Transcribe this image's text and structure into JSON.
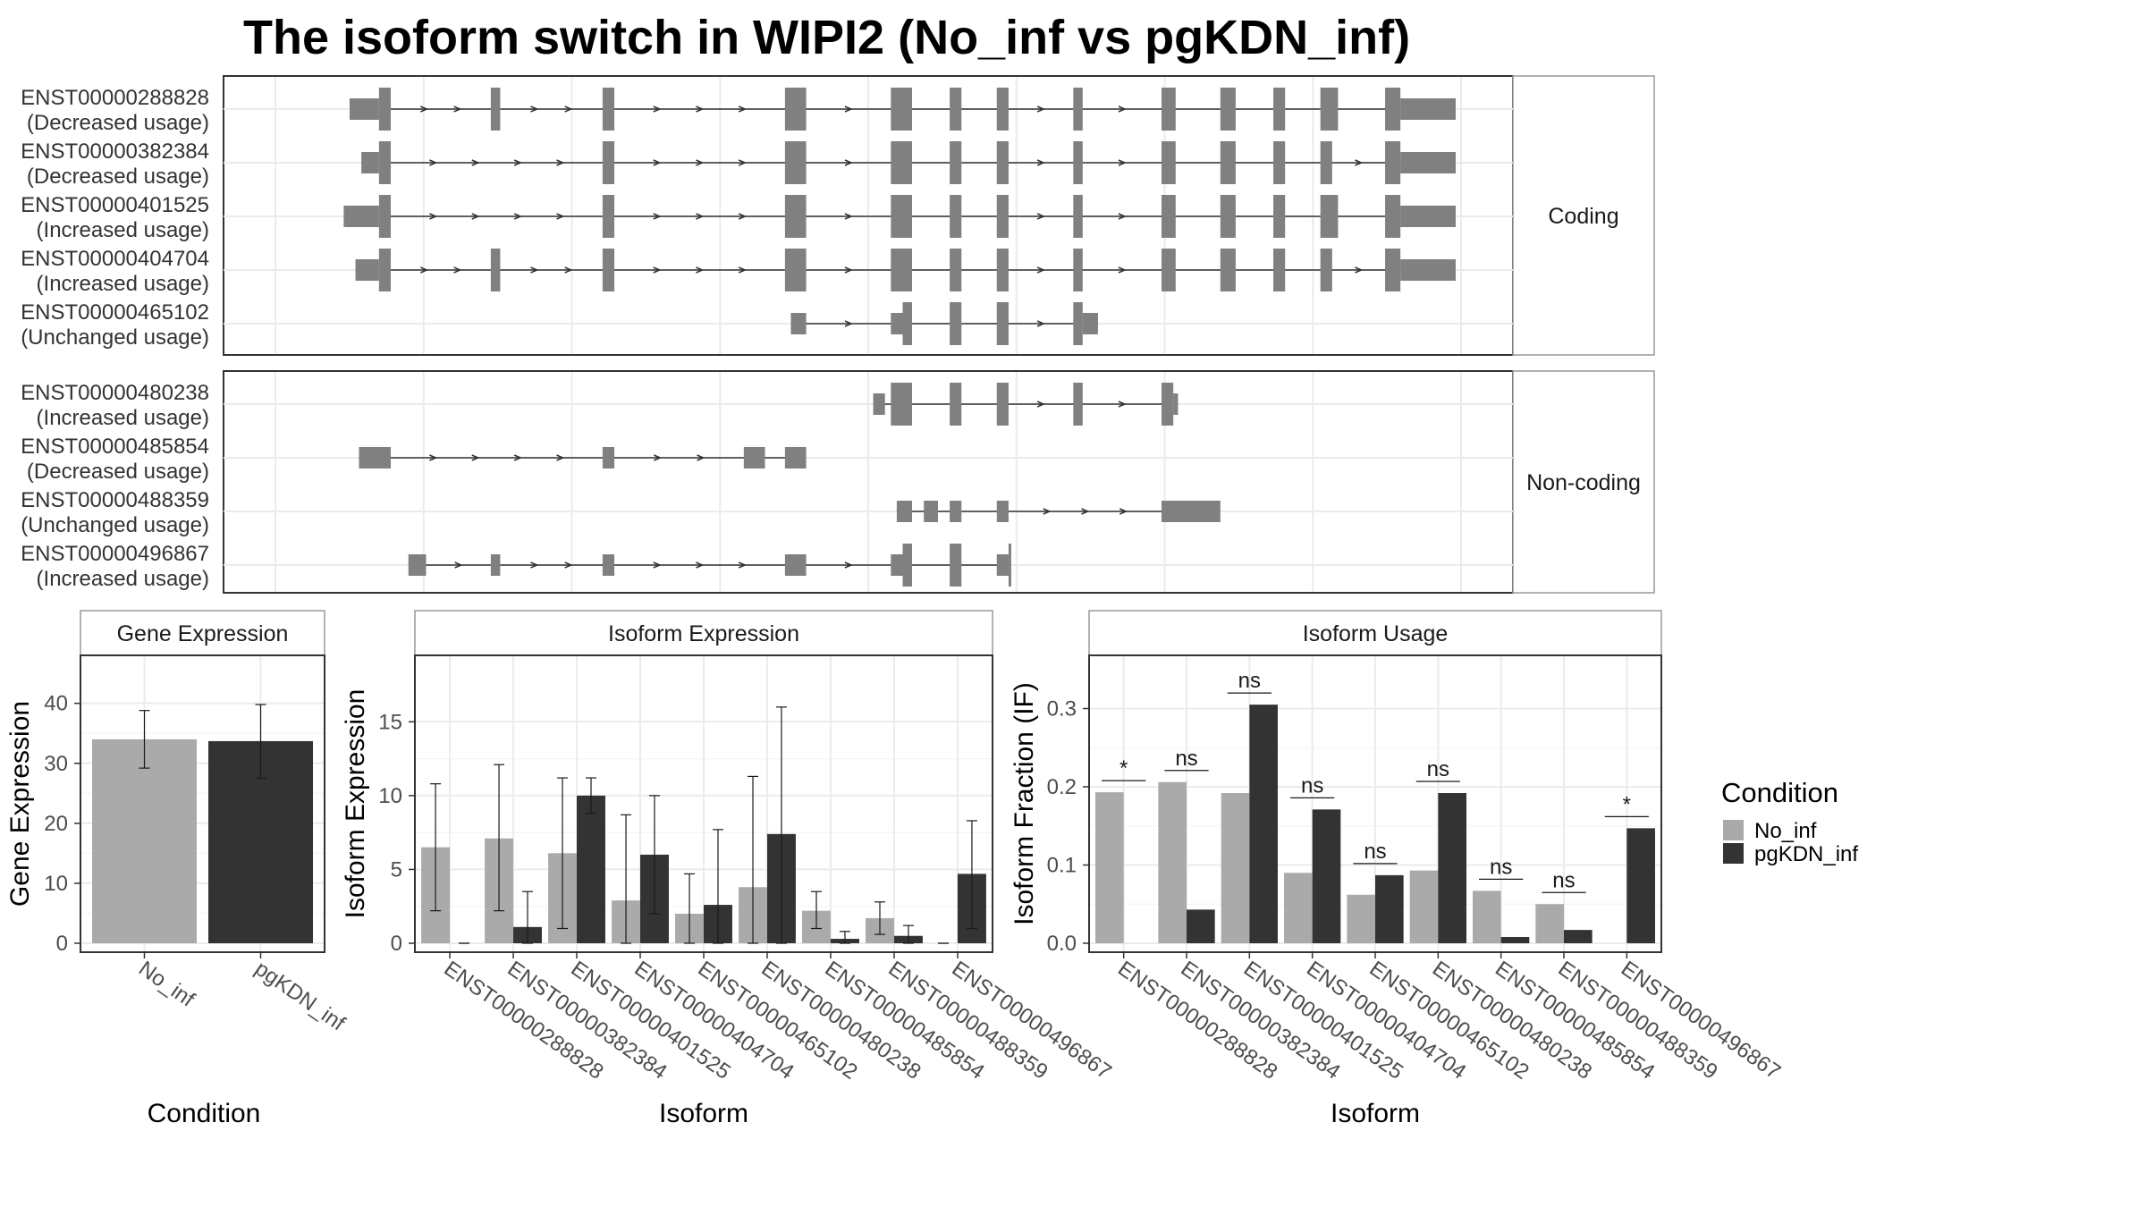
{
  "title": "The isoform switch in WIPI2 (No_inf vs pgKDN_inf)",
  "colors": {
    "No_inf": "#aaaaaa",
    "pgKDN_inf": "#333333",
    "exon": "#808080",
    "grid": "#ebebeb",
    "border": "#333333",
    "strip_border": "#999999"
  },
  "structure": {
    "groups": [
      {
        "name": "Coding",
        "isoforms": [
          {
            "id": "ENST00000288828",
            "usage": "(Decreased usage)",
            "exons": [
              [
                0.06,
                0.085,
                0.5
              ],
              [
                0.085,
                0.095,
                1
              ],
              [
                0.18,
                0.188,
                1
              ],
              [
                0.275,
                0.285,
                1
              ],
              [
                0.43,
                0.448,
                1
              ],
              [
                0.52,
                0.538,
                1
              ],
              [
                0.57,
                0.58,
                1
              ],
              [
                0.61,
                0.62,
                1
              ],
              [
                0.675,
                0.683,
                1
              ],
              [
                0.75,
                0.762,
                1
              ],
              [
                0.8,
                0.813,
                1
              ],
              [
                0.845,
                0.855,
                1
              ],
              [
                0.885,
                0.9,
                1
              ],
              [
                0.94,
                0.953,
                1
              ],
              [
                0.953,
                1.0,
                0.5
              ]
            ]
          },
          {
            "id": "ENST00000382384",
            "usage": "(Decreased usage)",
            "exons": [
              [
                0.07,
                0.085,
                0.5
              ],
              [
                0.085,
                0.095,
                1
              ],
              [
                0.275,
                0.285,
                1
              ],
              [
                0.43,
                0.448,
                1
              ],
              [
                0.52,
                0.538,
                1
              ],
              [
                0.57,
                0.58,
                1
              ],
              [
                0.61,
                0.62,
                1
              ],
              [
                0.675,
                0.683,
                1
              ],
              [
                0.75,
                0.762,
                1
              ],
              [
                0.8,
                0.813,
                1
              ],
              [
                0.845,
                0.855,
                1
              ],
              [
                0.885,
                0.895,
                1
              ],
              [
                0.94,
                0.953,
                1
              ],
              [
                0.953,
                1.0,
                0.5
              ]
            ]
          },
          {
            "id": "ENST00000401525",
            "usage": "(Increased usage)",
            "exons": [
              [
                0.055,
                0.085,
                0.5
              ],
              [
                0.085,
                0.095,
                1
              ],
              [
                0.275,
                0.285,
                1
              ],
              [
                0.43,
                0.448,
                1
              ],
              [
                0.52,
                0.538,
                1
              ],
              [
                0.57,
                0.58,
                1
              ],
              [
                0.61,
                0.62,
                1
              ],
              [
                0.675,
                0.683,
                1
              ],
              [
                0.75,
                0.762,
                1
              ],
              [
                0.8,
                0.813,
                1
              ],
              [
                0.845,
                0.855,
                1
              ],
              [
                0.885,
                0.9,
                1
              ],
              [
                0.94,
                0.953,
                1
              ],
              [
                0.953,
                1.0,
                0.5
              ]
            ]
          },
          {
            "id": "ENST00000404704",
            "usage": "(Increased usage)",
            "exons": [
              [
                0.065,
                0.085,
                0.5
              ],
              [
                0.085,
                0.095,
                1
              ],
              [
                0.18,
                0.188,
                1
              ],
              [
                0.275,
                0.285,
                1
              ],
              [
                0.43,
                0.448,
                1
              ],
              [
                0.52,
                0.538,
                1
              ],
              [
                0.57,
                0.58,
                1
              ],
              [
                0.61,
                0.62,
                1
              ],
              [
                0.675,
                0.683,
                1
              ],
              [
                0.75,
                0.762,
                1
              ],
              [
                0.8,
                0.813,
                1
              ],
              [
                0.845,
                0.855,
                1
              ],
              [
                0.885,
                0.895,
                1
              ],
              [
                0.94,
                0.953,
                1
              ],
              [
                0.953,
                1.0,
                0.5
              ]
            ]
          },
          {
            "id": "ENST00000465102",
            "usage": "(Unchanged usage)",
            "exons": [
              [
                0.435,
                0.448,
                0.5
              ],
              [
                0.52,
                0.53,
                0.5
              ],
              [
                0.53,
                0.538,
                1
              ],
              [
                0.57,
                0.58,
                1
              ],
              [
                0.61,
                0.62,
                1
              ],
              [
                0.675,
                0.683,
                1
              ],
              [
                0.683,
                0.696,
                0.5
              ]
            ]
          }
        ]
      },
      {
        "name": "Non-coding",
        "isoforms": [
          {
            "id": "ENST00000480238",
            "usage": "(Increased usage)",
            "exons": [
              [
                0.505,
                0.515,
                0.5
              ],
              [
                0.52,
                0.538,
                1
              ],
              [
                0.57,
                0.58,
                1
              ],
              [
                0.61,
                0.62,
                1
              ],
              [
                0.675,
                0.683,
                1
              ],
              [
                0.75,
                0.76,
                1
              ],
              [
                0.76,
                0.764,
                0.5
              ]
            ]
          },
          {
            "id": "ENST00000485854",
            "usage": "(Decreased usage)",
            "exons": [
              [
                0.068,
                0.095,
                0.5
              ],
              [
                0.275,
                0.285,
                0.5
              ],
              [
                0.395,
                0.413,
                0.5
              ],
              [
                0.43,
                0.448,
                0.5
              ]
            ]
          },
          {
            "id": "ENST00000488359",
            "usage": "(Unchanged usage)",
            "exons": [
              [
                0.525,
                0.538,
                0.5
              ],
              [
                0.548,
                0.56,
                0.5
              ],
              [
                0.57,
                0.58,
                0.5
              ],
              [
                0.61,
                0.62,
                0.5
              ],
              [
                0.75,
                0.8,
                0.5
              ]
            ]
          },
          {
            "id": "ENST00000496867",
            "usage": "(Increased usage)",
            "exons": [
              [
                0.11,
                0.125,
                0.5
              ],
              [
                0.18,
                0.188,
                0.5
              ],
              [
                0.275,
                0.285,
                0.5
              ],
              [
                0.43,
                0.448,
                0.5
              ],
              [
                0.52,
                0.53,
                0.5
              ],
              [
                0.53,
                0.538,
                1
              ],
              [
                0.57,
                0.58,
                1
              ],
              [
                0.61,
                0.62,
                0.5
              ],
              [
                0.62,
                0.622,
                1
              ]
            ]
          }
        ]
      }
    ]
  },
  "chart_data": [
    {
      "type": "bar",
      "title": "Gene Expression",
      "xlabel": "Condition",
      "ylabel": "Gene Expression",
      "categories": [
        "No_inf",
        "pgKDN_inf"
      ],
      "values": [
        34,
        33.7
      ],
      "errors": [
        [
          29.2,
          38.8
        ],
        [
          27.5,
          39.8
        ]
      ],
      "ylim": [
        0,
        48
      ],
      "yticks": [
        0,
        10,
        20,
        30,
        40
      ]
    },
    {
      "type": "bar",
      "title": "Isoform Expression",
      "xlabel": "Isoform",
      "ylabel": "Isoform Expression",
      "categories": [
        "ENST00000288828",
        "ENST00000382384",
        "ENST00000401525",
        "ENST00000404704",
        "ENST00000465102",
        "ENST00000480238",
        "ENST00000485854",
        "ENST00000488359",
        "ENST00000496867"
      ],
      "series": [
        {
          "name": "No_inf",
          "values": [
            6.5,
            7.1,
            6.1,
            2.9,
            2.0,
            3.8,
            2.2,
            1.7,
            0.0
          ],
          "errors": [
            [
              2.2,
              10.8
            ],
            [
              2.2,
              12.1
            ],
            [
              1.0,
              11.2
            ],
            [
              0,
              8.7
            ],
            [
              0,
              4.7
            ],
            [
              0,
              11.3
            ],
            [
              1.0,
              3.5
            ],
            [
              0.6,
              2.8
            ],
            [
              0,
              0
            ]
          ]
        },
        {
          "name": "pgKDN_inf",
          "values": [
            0.0,
            1.1,
            10.0,
            6.0,
            2.6,
            7.4,
            0.3,
            0.5,
            4.7
          ],
          "errors": [
            [
              0,
              0
            ],
            [
              0,
              3.5
            ],
            [
              8.8,
              11.2
            ],
            [
              2.0,
              10.0
            ],
            [
              0,
              7.7
            ],
            [
              0,
              16.0
            ],
            [
              0,
              0.8
            ],
            [
              0,
              1.2
            ],
            [
              1.0,
              8.3
            ]
          ]
        }
      ],
      "ylim": [
        0,
        19.5
      ],
      "yticks": [
        0,
        5,
        10,
        15
      ]
    },
    {
      "type": "bar",
      "title": "Isoform Usage",
      "xlabel": "Isoform",
      "ylabel": "Isoform Fraction (IF)",
      "categories": [
        "ENST00000288828",
        "ENST00000382384",
        "ENST00000401525",
        "ENST00000404704",
        "ENST00000465102",
        "ENST00000480238",
        "ENST00000485854",
        "ENST00000488359",
        "ENST00000496867"
      ],
      "series": [
        {
          "name": "No_inf",
          "values": [
            0.193,
            0.206,
            0.192,
            0.09,
            0.062,
            0.093,
            0.067,
            0.05,
            0.0
          ]
        },
        {
          "name": "pgKDN_inf",
          "values": [
            0.0,
            0.043,
            0.305,
            0.171,
            0.087,
            0.192,
            0.008,
            0.017,
            0.147
          ]
        }
      ],
      "significance": [
        "*",
        "ns",
        "ns",
        "ns",
        "ns",
        "ns",
        "ns",
        "ns",
        "*"
      ],
      "ylim": [
        0,
        0.368
      ],
      "yticks": [
        0.0,
        0.1,
        0.2,
        0.3
      ],
      "ytick_labels": [
        "0.0",
        "0.1",
        "0.2",
        "0.3"
      ]
    }
  ],
  "legend": {
    "title": "Condition",
    "entries": [
      "No_inf",
      "pgKDN_inf"
    ],
    "placement": "right"
  }
}
